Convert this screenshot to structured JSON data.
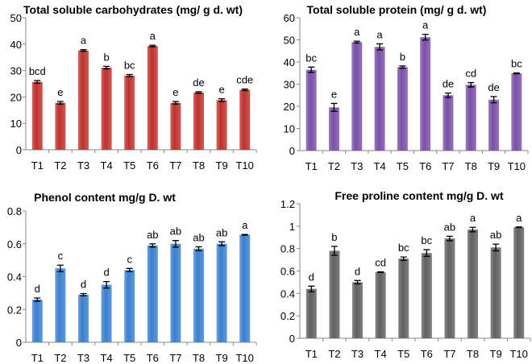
{
  "chart_data": [
    {
      "type": "bar",
      "title": "Total soluble carbohydrates (mg/ g d. wt)",
      "xlabel": "",
      "ylabel": "",
      "categories": [
        "T1",
        "T2",
        "T3",
        "T4",
        "T5",
        "T6",
        "T7",
        "T8",
        "T9",
        "T10"
      ],
      "values": [
        25.7,
        17.8,
        37.6,
        31.1,
        28.1,
        39.3,
        17.8,
        21.7,
        18.8,
        22.7
      ],
      "errors": [
        0.5,
        0.5,
        0.3,
        0.5,
        0.4,
        0.3,
        0.5,
        0.3,
        0.5,
        0.3
      ],
      "labels": [
        "bcd",
        "e",
        "a",
        "b",
        "bc",
        "a",
        "e",
        "de",
        "e",
        "cde"
      ],
      "ylim": [
        0,
        50
      ],
      "yticks": [
        "0",
        "10",
        "20",
        "30",
        "40",
        "50"
      ],
      "color": "#c0302c",
      "grid": false
    },
    {
      "type": "bar",
      "title": "Total soluble protein (mg/ g d. wt)",
      "xlabel": "",
      "ylabel": "",
      "categories": [
        "T1",
        "T2",
        "T3",
        "T4",
        "T5",
        "T6",
        "T7",
        "T8",
        "T9",
        "T10"
      ],
      "values": [
        36.5,
        19.5,
        49.0,
        46.8,
        37.7,
        51.2,
        25.0,
        29.7,
        23.0,
        34.9
      ],
      "errors": [
        1.2,
        1.8,
        0.4,
        1.4,
        0.5,
        1.3,
        1.0,
        1.0,
        1.4,
        0.2
      ],
      "labels": [
        "bc",
        "e",
        "a",
        "a",
        "b",
        "a",
        "de",
        "cd",
        "de",
        "bc"
      ],
      "ylim": [
        0,
        60
      ],
      "yticks": [
        "0",
        "10",
        "20",
        "30",
        "40",
        "50",
        "60"
      ],
      "color": "#7a4fa8",
      "grid": false
    },
    {
      "type": "bar",
      "title": "Phenol content mg/g D. wt",
      "xlabel": "",
      "ylabel": "",
      "categories": [
        "T1",
        "T2",
        "T3",
        "T4",
        "T5",
        "T6",
        "T7",
        "T8",
        "T9",
        "T10"
      ],
      "values": [
        0.26,
        0.45,
        0.29,
        0.35,
        0.44,
        0.59,
        0.6,
        0.57,
        0.6,
        0.655
      ],
      "errors": [
        0.01,
        0.02,
        0.007,
        0.02,
        0.01,
        0.01,
        0.02,
        0.012,
        0.012,
        0.002
      ],
      "labels": [
        "d",
        "c",
        "d",
        "d",
        "c",
        "ab",
        "ab",
        "ab",
        "ab",
        "a"
      ],
      "ylim": [
        0,
        0.8
      ],
      "yticks": [
        "0",
        "0.2",
        "0.4",
        "0.6",
        "0.8"
      ],
      "color": "#3a7fd0",
      "grid": false
    },
    {
      "type": "bar",
      "title": "Free proline  content mg/g D. wt",
      "xlabel": "",
      "ylabel": "",
      "categories": [
        "T1",
        "T2",
        "T3",
        "T4",
        "T5",
        "T6",
        "T7",
        "T8",
        "T9",
        "T10"
      ],
      "values": [
        0.44,
        0.78,
        0.5,
        0.59,
        0.71,
        0.76,
        0.89,
        0.97,
        0.81,
        0.99
      ],
      "errors": [
        0.025,
        0.04,
        0.015,
        0.003,
        0.015,
        0.03,
        0.02,
        0.02,
        0.03,
        0.003
      ],
      "labels": [
        "d",
        "b",
        "d",
        "cd",
        "bc",
        "bc",
        "ab",
        "a",
        "ab",
        "a"
      ],
      "ylim": [
        0,
        1.2
      ],
      "yticks": [
        "0",
        "0.2",
        "0.4",
        "0.6",
        "0.8",
        "1",
        "1.2"
      ],
      "color": "#606060",
      "grid": false
    }
  ]
}
